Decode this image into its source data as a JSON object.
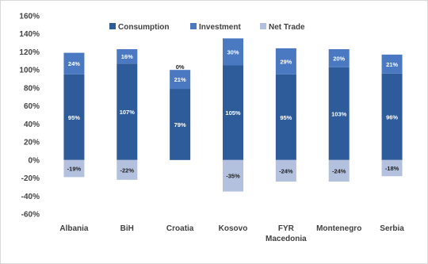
{
  "chart_data": {
    "type": "bar",
    "stacked": true,
    "categories": [
      "Albania",
      "BiH",
      "Croatia",
      "Kosovo",
      "FYR\nMacedonia",
      "Montenegro",
      "Serbia"
    ],
    "series": [
      {
        "name": "Consumption",
        "values": [
          95,
          107,
          79,
          105,
          95,
          103,
          96
        ],
        "labels": [
          "95%",
          "107%",
          "79%",
          "105%",
          "95%",
          "103%",
          "96%"
        ],
        "color": "#2e5b99"
      },
      {
        "name": "Investment",
        "values": [
          24,
          16,
          21,
          30,
          29,
          20,
          21
        ],
        "labels": [
          "24%",
          "16%",
          "21%",
          "30%",
          "29%",
          "20%",
          "21%"
        ],
        "color": "#4a79c2"
      },
      {
        "name": "Net Trade",
        "values": [
          -19,
          -22,
          0,
          -35,
          -24,
          -24,
          -18
        ],
        "labels": [
          "-19%",
          "-22%",
          "0%",
          "-35%",
          "-24%",
          "-24%",
          "-18%"
        ],
        "color": "#b3c1df"
      }
    ],
    "y_ticks": [
      "160%",
      "140%",
      "120%",
      "100%",
      "80%",
      "60%",
      "40%",
      "20%",
      "0%",
      "-20%",
      "-40%",
      "-60%"
    ],
    "ylim": [
      -60,
      160
    ],
    "grid": false,
    "legend_position": "top"
  }
}
